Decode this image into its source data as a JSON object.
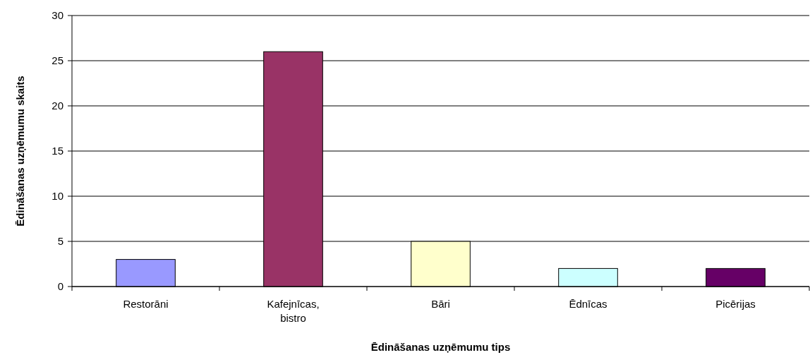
{
  "chart_data": {
    "type": "bar",
    "xlabel": "Ēdināšanas uzņēmumu tips",
    "ylabel": "Ēdināšanas uzņēmumu skaits",
    "categories": [
      "Restorāni",
      "Kafejnīcas, bistro",
      "Bāri",
      "Ēdnīcas",
      "Picērijas"
    ],
    "values": [
      3,
      26,
      5,
      2,
      2
    ],
    "colors": [
      "#9999ff",
      "#993366",
      "#ffffcc",
      "#ccffff",
      "#660066"
    ],
    "ylim": [
      0,
      30
    ],
    "yticks": [
      0,
      5,
      10,
      15,
      20,
      25,
      30
    ],
    "grid": "y"
  }
}
